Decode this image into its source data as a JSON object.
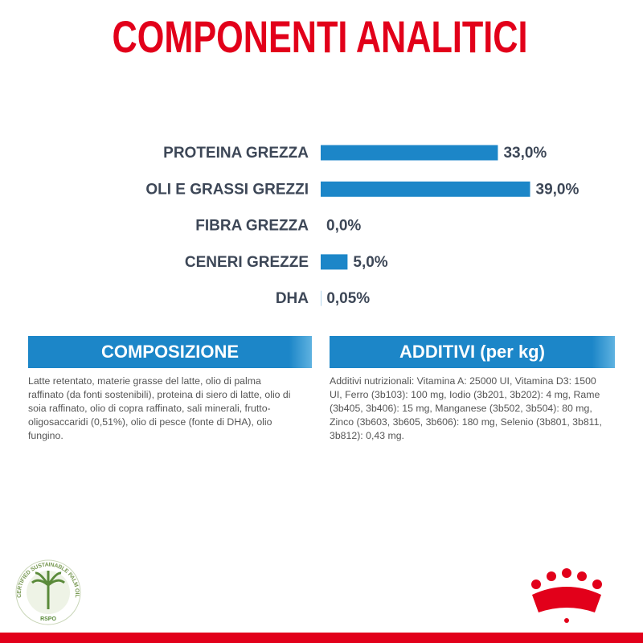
{
  "chart_data": {
    "type": "bar",
    "orientation": "horizontal",
    "title": "COMPONENTI ANALITICI",
    "categories": [
      "PROTEINA GREZZA",
      "OLI E GRASSI GREZZI",
      "FIBRA GREZZA",
      "CENERI GREZZE",
      "DHA"
    ],
    "values": [
      33.0,
      39.0,
      0.0,
      5.0,
      0.05
    ],
    "value_labels": [
      "33,0%",
      "39,0%",
      "0,0%",
      "5,0%",
      "0,05%"
    ],
    "color": "#1c86c8"
  },
  "panels": [
    {
      "title": "COMPOSIZIONE",
      "text": "Latte retentato, materie grasse del latte, olio di palma raffinato (da fonti sostenibili), proteina di siero di latte, olio di soia raffinato, olio di copra raffinato, sali minerali, frutto-oligosaccaridi (0,51%), olio di pesce (fonte di DHA), olio fungino."
    },
    {
      "title": "ADDITIVI (per kg)",
      "text": "Additivi nutrizionali: Vitamina A: 25000 UI, Vitamina D3: 1500 UI, Ferro (3b103): 100 mg, Iodio (3b201, 3b202): 4 mg, Rame (3b405, 3b406): 15 mg, Manganese (3b502, 3b504): 80 mg, Zinco (3b603, 3b605, 3b606): 180 mg, Selenio (3b801, 3b811, 3b812): 0,43 mg."
    }
  ],
  "logo": {
    "ring": "CERTIFIED SUSTAINABLE PALM OIL",
    "mark": "RSPO"
  }
}
